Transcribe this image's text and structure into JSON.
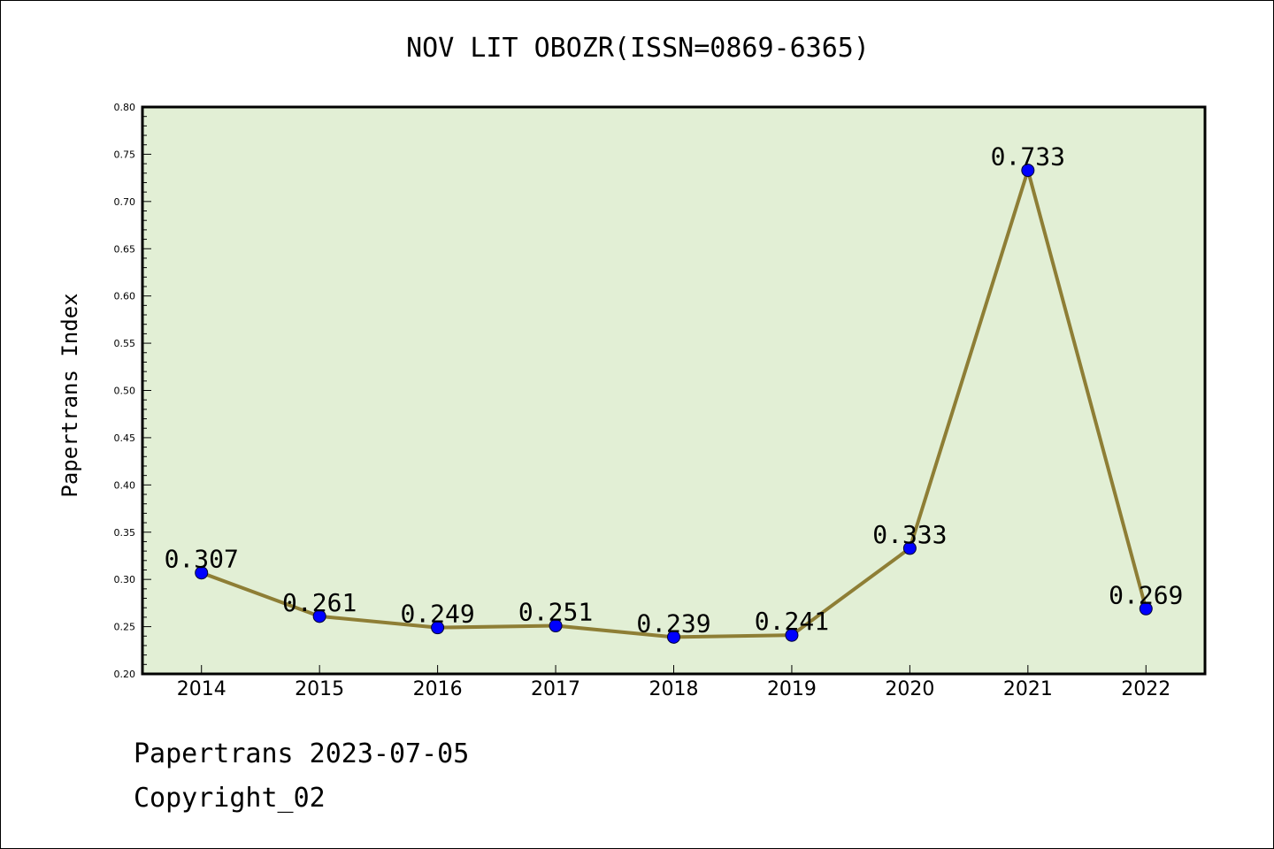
{
  "chart_data": {
    "type": "line",
    "title": "NOV LIT OBOZR(ISSN=0869-6365)",
    "ylabel": "Papertrans Index",
    "xlabel": "",
    "categories": [
      "2014",
      "2015",
      "2016",
      "2017",
      "2018",
      "2019",
      "2020",
      "2021",
      "2022"
    ],
    "values": [
      0.307,
      0.261,
      0.249,
      0.251,
      0.239,
      0.241,
      0.333,
      0.733,
      0.269
    ],
    "data_labels": [
      "0.307",
      "0.261",
      "0.249",
      "0.251",
      "0.239",
      "0.241",
      "0.333",
      "0.733",
      "0.269"
    ],
    "ylim": [
      0.2,
      0.8
    ],
    "yticks": [
      "0.20",
      "0.25",
      "0.30",
      "0.35",
      "0.40",
      "0.45",
      "0.50",
      "0.55",
      "0.60",
      "0.65",
      "0.70",
      "0.75",
      "0.80"
    ],
    "grid": false,
    "colors": {
      "plot_background": "#e2efd5",
      "line": "#8e7e35",
      "marker": "#0000ff"
    }
  },
  "footer": {
    "line1": "Papertrans 2023-07-05",
    "line2": "Copyright_02"
  }
}
